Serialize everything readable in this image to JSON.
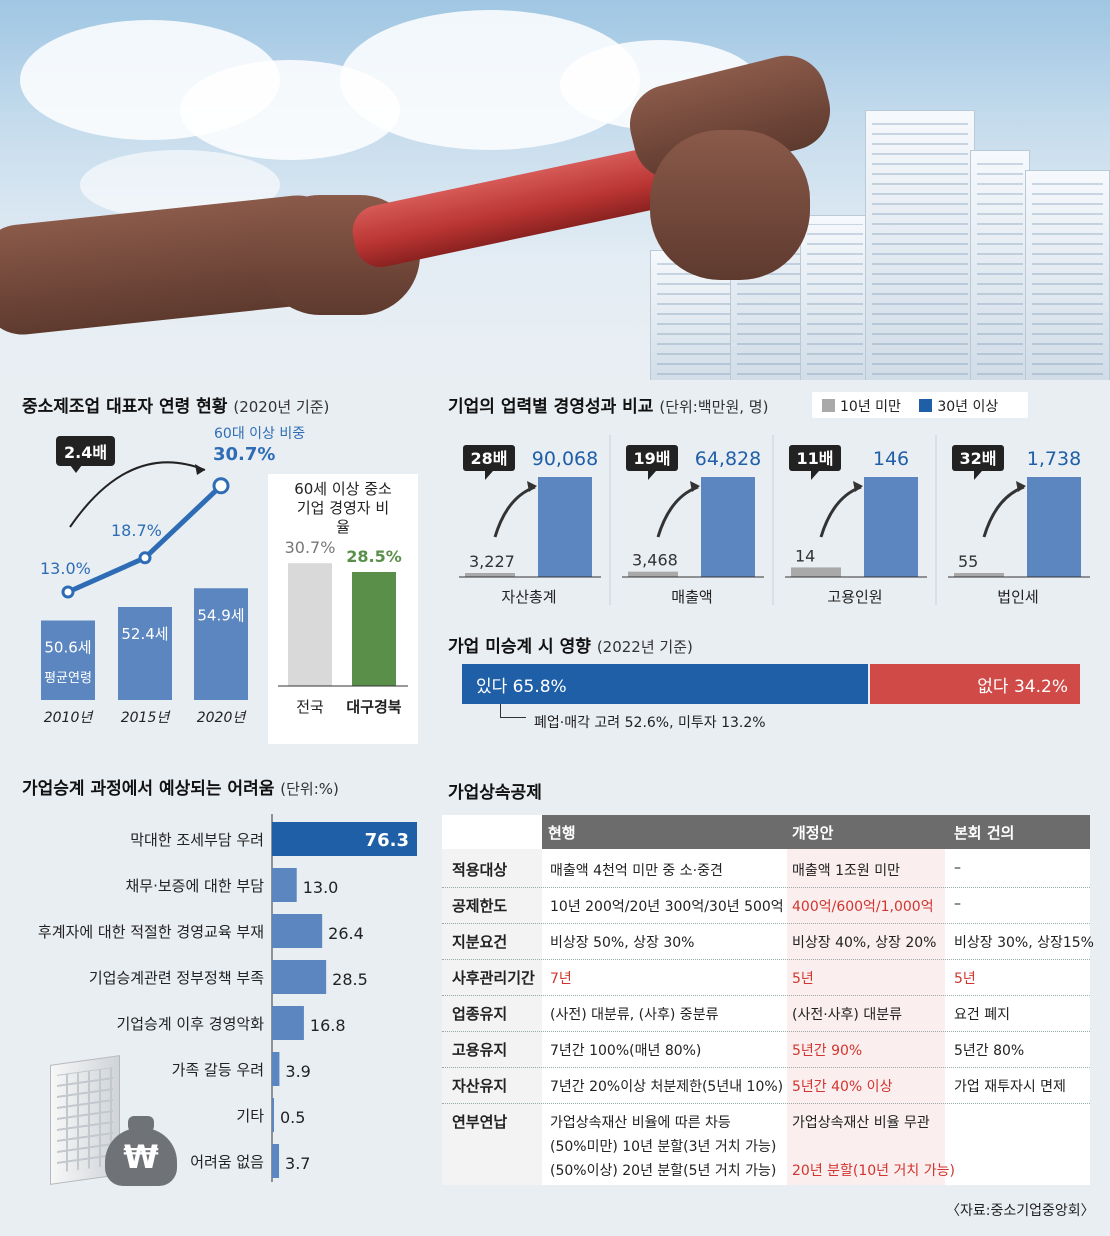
{
  "colors": {
    "blue": "#5b86c0",
    "dark_blue": "#1f5fa8",
    "gray": "#a9a9a9",
    "green": "#5a8f4a",
    "red": "#d2352f",
    "light_gray": "#d9d9d9"
  },
  "age_chart": {
    "title": "중소제조업 대표자 연령 현황",
    "title_note": "(2020년 기준)",
    "growth_callout": "2.4배",
    "top_note": "60대 이상 비중",
    "avg_label": "평균연령",
    "bars_title": "60세 이상 중소기업 경영자 비율",
    "compare_labels": [
      "전국",
      "대구경북"
    ]
  },
  "performance": {
    "title": "기업의 업력별 경영성과 비교",
    "unit": "(단위:백만원, 명)",
    "legend": [
      "10년 미만",
      "30년 이상"
    ]
  },
  "impact": {
    "title": "가업 미승계 시 영향",
    "note": "(2022년 기준)",
    "yes_label": "있다 65.8%",
    "no_label": "없다 34.2%",
    "detail": "폐업·매각 고려 52.6%, 미투자 13.2%"
  },
  "difficulty": {
    "title": "가업승계 과정에서 예상되는 어려움",
    "unit": "(단위:%)"
  },
  "tax_table": {
    "title": "가업상속공제",
    "headers": [
      "현행",
      "개정안",
      "본회 건의"
    ],
    "rows": [
      {
        "label": "적용대상",
        "current": "매출액 4천억 미만 중 소·중견",
        "revised": "매출액 1조원 미만",
        "proposal": "–"
      },
      {
        "label": "공제한도",
        "current": "10년 200억/20년 300억/30년 500억",
        "revised": "400억/600억/1,000억",
        "proposal": "–"
      },
      {
        "label": "지분요건",
        "current": "비상장 50%, 상장 30%",
        "revised": "비상장 40%, 상장 20%",
        "proposal": "비상장 30%, 상장15%"
      },
      {
        "label": "사후관리기간",
        "current": "7년",
        "revised": "5년",
        "proposal": "5년"
      },
      {
        "label": "업종유지",
        "current": "(사전) 대분류, (사후) 중분류",
        "revised": "(사전·사후) 대분류",
        "proposal": "요건 폐지"
      },
      {
        "label": "고용유지",
        "current": "7년간 100%(매년 80%)",
        "revised": "5년간 90%",
        "proposal": "5년간 80%"
      },
      {
        "label": "자산유지",
        "current": "7년간 20%이상 처분제한(5년내 10%)",
        "revised": "5년간 40% 이상",
        "proposal": "가업 재투자시 면제"
      },
      {
        "label": "연부연납",
        "current": "가업상속재산 비율에 따른 차등",
        "current2": "(50%미만) 10년 분할(3년 거치 가능)",
        "current3": "(50%이상) 20년 분할(5년 거치 가능)",
        "revised": "가업상속재산 비율 무관",
        "revised2": "20년 분할(10년 거치 가능)",
        "proposal": ""
      }
    ]
  },
  "source": "〈자료:중소기업중앙회〉",
  "chart_data": [
    {
      "type": "bar+line",
      "title": "중소제조업 대표자 연령 현황",
      "categories": [
        "2010년",
        "2015년",
        "2020년"
      ],
      "series": [
        {
          "name": "평균연령",
          "values": [
            50.6,
            52.4,
            54.9
          ],
          "labels": [
            "50.6세",
            "52.4세",
            "54.9세"
          ]
        },
        {
          "name": "60대 이상 비중",
          "values": [
            13.0,
            18.7,
            30.7
          ],
          "labels": [
            "13.0%",
            "18.7%",
            "30.7%"
          ]
        }
      ]
    },
    {
      "type": "bar",
      "title": "60세 이상 중소기업 경영자 비율",
      "categories": [
        "전국",
        "대구경북"
      ],
      "values": [
        30.7,
        28.5
      ],
      "labels": [
        "30.7%",
        "28.5%"
      ]
    },
    {
      "type": "bar",
      "title": "기업의 업력별 경영성과 비교",
      "categories": [
        "자산총계",
        "매출액",
        "고용인원",
        "법인세"
      ],
      "series": [
        {
          "name": "10년 미만",
          "values": [
            3227,
            3468,
            14,
            55
          ],
          "labels": [
            "3,227",
            "3,468",
            "14",
            "55"
          ]
        },
        {
          "name": "30년 이상",
          "values": [
            90068,
            64828,
            146,
            1738
          ],
          "labels": [
            "90,068",
            "64,828",
            "146",
            "1,738"
          ]
        }
      ],
      "ratios": [
        "28배",
        "19배",
        "11배",
        "32배"
      ]
    },
    {
      "type": "bar",
      "title": "가업승계 과정에서 예상되는 어려움",
      "categories": [
        "막대한 조세부담 우려",
        "채무·보증에 대한 부담",
        "후계자에 대한 적절한 경영교육 부재",
        "기업승계관련 정부정책 부족",
        "기업승계 이후 경영악화",
        "가족 갈등 우려",
        "기타",
        "어려움 없음"
      ],
      "values": [
        76.3,
        13.0,
        26.4,
        28.5,
        16.8,
        3.9,
        0.5,
        3.7
      ],
      "labels": [
        "76.3",
        "13.0",
        "26.4",
        "28.5",
        "16.8",
        "3.9",
        "0.5",
        "3.7"
      ]
    }
  ]
}
